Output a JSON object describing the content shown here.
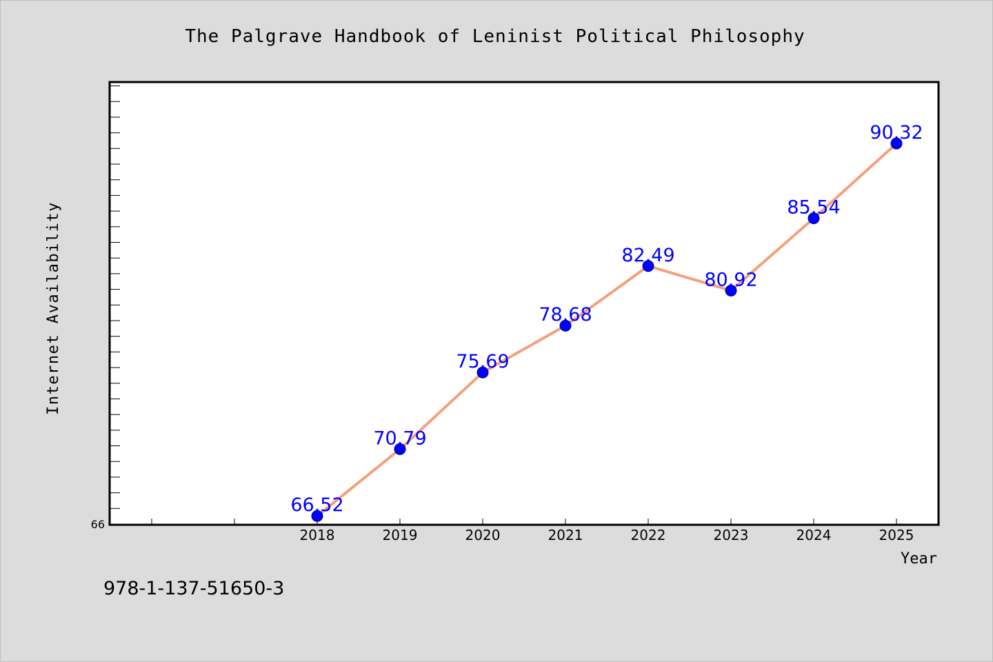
{
  "chart_data": {
    "type": "line",
    "title": "The Palgrave Handbook of Leninist Political Philosophy",
    "xlabel": "Year",
    "ylabel": "Internet Availability",
    "x": [
      "2018",
      "2019",
      "2020",
      "2021",
      "2022",
      "2023",
      "2024",
      "2025"
    ],
    "series": [
      {
        "values": [
          66.52,
          70.79,
          75.69,
          78.68,
          82.49,
          80.92,
          85.54,
          90.32
        ]
      }
    ],
    "data_labels": [
      "66.52",
      "70.79",
      "75.69",
      "78.68",
      "82.49",
      "80.92",
      "85.54",
      "90.32"
    ],
    "xlim": [
      2015.5,
      2025.5
    ],
    "ylim": [
      66,
      94.2
    ],
    "y_tick_labels": [
      "66"
    ],
    "grid": false,
    "colors": {
      "line": "#f4a07c",
      "marker": "#0000ff",
      "data_label": "#0000ff",
      "plot_background": "#ffffff",
      "figure_background": "#dcdcdc"
    }
  },
  "footer": {
    "isbn": "978-1-137-51650-3"
  }
}
